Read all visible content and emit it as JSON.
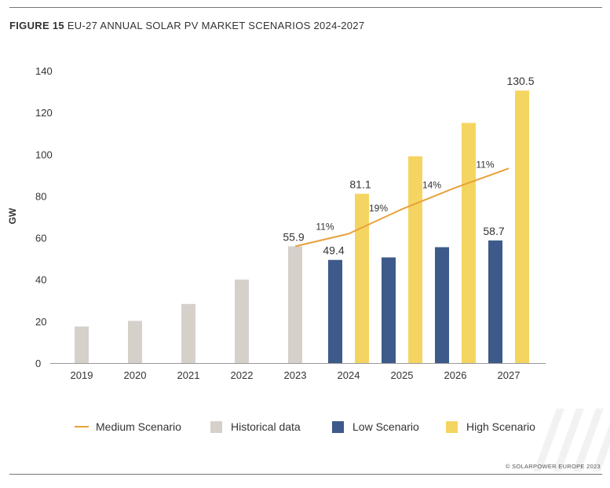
{
  "figure": {
    "number": "FIGURE 15",
    "title": "EU-27 ANNUAL SOLAR PV MARKET SCENARIOS 2024-2027"
  },
  "credit": "© SOLARPOWER EUROPE 2023",
  "colors": {
    "historical": "#d6d0cb",
    "low": "#3d5a8a",
    "high": "#f5d561",
    "medium": "#e8a13a",
    "axis": "#999999",
    "text": "#333333"
  },
  "legend": {
    "medium": "Medium Scenario",
    "historical": "Historical data",
    "low": "Low Scenario",
    "high": "High Scenario"
  },
  "chart_data": {
    "type": "bar",
    "title": "EU-27 ANNUAL SOLAR PV MARKET SCENARIOS 2024-2027",
    "xlabel": "",
    "ylabel": "GW",
    "ylim": [
      0,
      140
    ],
    "yticks": [
      0,
      20,
      40,
      60,
      80,
      100,
      120,
      140
    ],
    "grid": false,
    "legend_position": "bottom",
    "categories": [
      "2019",
      "2020",
      "2021",
      "2022",
      "2023",
      "2024",
      "2025",
      "2026",
      "2027"
    ],
    "series": [
      {
        "name": "Historical data",
        "type": "bar",
        "values": [
          17.5,
          20.2,
          28.3,
          40.0,
          55.9,
          null,
          null,
          null,
          null
        ]
      },
      {
        "name": "Low Scenario",
        "type": "bar",
        "values": [
          null,
          null,
          null,
          null,
          null,
          49.4,
          50.6,
          55.5,
          58.7
        ]
      },
      {
        "name": "High Scenario",
        "type": "bar",
        "values": [
          null,
          null,
          null,
          null,
          null,
          81.1,
          99.0,
          115.0,
          130.5
        ]
      },
      {
        "name": "Medium Scenario",
        "type": "line",
        "values": [
          null,
          null,
          null,
          null,
          55.9,
          61.9,
          73.7,
          84.0,
          93.2
        ]
      }
    ],
    "data_labels": [
      {
        "category": "2023",
        "series": "Historical data",
        "text": "55.9"
      },
      {
        "category": "2024",
        "series": "High Scenario",
        "text": "81.1"
      },
      {
        "category": "2024",
        "series": "Low Scenario",
        "text": "49.4"
      },
      {
        "category": "2027",
        "series": "High Scenario",
        "text": "130.5"
      },
      {
        "category": "2027",
        "series": "Low Scenario",
        "text": "58.7"
      }
    ],
    "growth_labels": [
      {
        "category": "2024",
        "text": "11%"
      },
      {
        "category": "2025",
        "text": "19%"
      },
      {
        "category": "2026",
        "text": "14%"
      },
      {
        "category": "2027",
        "text": "11%"
      }
    ]
  }
}
